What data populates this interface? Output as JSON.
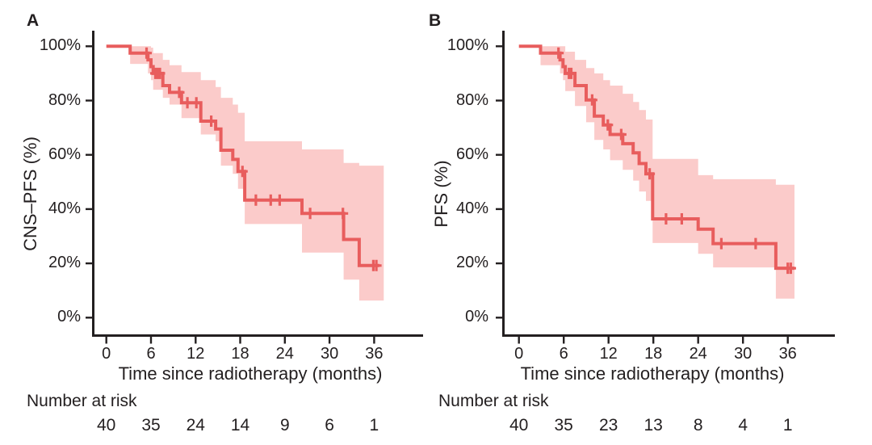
{
  "figure": {
    "panels": [
      {
        "label": "A",
        "y_axis_title": "CNS–PFS (%)",
        "x_axis_title": "Time since radiotherapy (months)",
        "risk_header": "Number at risk",
        "y_tick_labels": [
          "100%",
          "80%",
          "60%",
          "40%",
          "20%",
          "0%"
        ],
        "x_tick_labels": [
          "0",
          "6",
          "12",
          "18",
          "24",
          "30",
          "36"
        ],
        "number_at_risk": [
          "40",
          "35",
          "24",
          "14",
          "9",
          "6",
          "1"
        ]
      },
      {
        "label": "B",
        "y_axis_title": "PFS (%)",
        "x_axis_title": "Time since radiotherapy (months)",
        "risk_header": "Number at risk",
        "y_tick_labels": [
          "100%",
          "80%",
          "60%",
          "40%",
          "20%",
          "0%"
        ],
        "x_tick_labels": [
          "0",
          "6",
          "12",
          "18",
          "24",
          "30",
          "36"
        ],
        "number_at_risk": [
          "40",
          "35",
          "23",
          "13",
          "8",
          "4",
          "1"
        ]
      }
    ]
  },
  "chart_data": [
    {
      "type": "line",
      "subtype": "kaplan-meier-step-curve-with-ci-band",
      "title": "A",
      "xlabel": "Time since radiotherapy (months)",
      "ylabel": "CNS–PFS (%)",
      "xlim": [
        0,
        38.5
      ],
      "ylim": [
        0,
        100
      ],
      "x_ticks": [
        0,
        6,
        12,
        18,
        24,
        30,
        36
      ],
      "y_ticks_pct": [
        100,
        80,
        60,
        40,
        20,
        0
      ],
      "grid": false,
      "legend": "none",
      "curve_color": "#E85D5D",
      "band_color": "#FBCBCA",
      "steps": [
        [
          0,
          100
        ],
        [
          3.2,
          97.5
        ],
        [
          5.6,
          95
        ],
        [
          6.0,
          92.5
        ],
        [
          6.3,
          90
        ],
        [
          7.6,
          85.5
        ],
        [
          8.5,
          83
        ],
        [
          10.1,
          79.2
        ],
        [
          12.7,
          72.4
        ],
        [
          14.7,
          69.5
        ],
        [
          15.4,
          61.7
        ],
        [
          17.0,
          58.3
        ],
        [
          17.7,
          53.9
        ],
        [
          18.6,
          43.3
        ],
        [
          26.3,
          38.4
        ],
        [
          31.9,
          28.8
        ],
        [
          34.0,
          19.2
        ]
      ],
      "end_time": 36.7,
      "censor_marks": [
        [
          5.4,
          97.5
        ],
        [
          6.6,
          90
        ],
        [
          6.9,
          90
        ],
        [
          7.2,
          90
        ],
        [
          9.8,
          83
        ],
        [
          10.9,
          79.2
        ],
        [
          12.1,
          79.2
        ],
        [
          14.1,
          72.4
        ],
        [
          18.3,
          53.9
        ],
        [
          20.1,
          43.3
        ],
        [
          22.1,
          43.3
        ],
        [
          23.3,
          43.3
        ],
        [
          27.4,
          38.4
        ],
        [
          31.8,
          38.4
        ],
        [
          35.9,
          19.2
        ],
        [
          36.3,
          19.2
        ]
      ],
      "ci_band": [
        [
          3.2,
          93.5,
          100
        ],
        [
          5.6,
          90,
          100
        ],
        [
          6.0,
          87.5,
          99.5
        ],
        [
          6.3,
          84,
          97.5
        ],
        [
          7.6,
          81,
          95
        ],
        [
          8.5,
          78.5,
          93
        ],
        [
          10.1,
          73.5,
          90.5
        ],
        [
          12.7,
          67.5,
          87.5
        ],
        [
          14.7,
          65,
          85
        ],
        [
          15.4,
          56,
          81
        ],
        [
          17.0,
          53,
          78.5
        ],
        [
          17.7,
          47.5,
          75.5
        ],
        [
          18.6,
          34.5,
          65
        ],
        [
          26.3,
          24,
          62
        ],
        [
          31.9,
          14,
          57
        ],
        [
          34.0,
          6.3,
          56
        ]
      ],
      "ci_end_time": 37.3,
      "number_at_risk": {
        "times": [
          0,
          6,
          12,
          18,
          24,
          30,
          36
        ],
        "counts": [
          40,
          35,
          24,
          14,
          9,
          6,
          1
        ]
      }
    },
    {
      "type": "line",
      "subtype": "kaplan-meier-step-curve-with-ci-band",
      "title": "B",
      "xlabel": "Time since radiotherapy (months)",
      "ylabel": "PFS (%)",
      "xlim": [
        0,
        38.5
      ],
      "ylim": [
        0,
        100
      ],
      "x_ticks": [
        0,
        6,
        12,
        18,
        24,
        30,
        36
      ],
      "y_ticks_pct": [
        100,
        80,
        60,
        40,
        20,
        0
      ],
      "grid": false,
      "legend": "none",
      "curve_color": "#E85D5D",
      "band_color": "#FBCBCA",
      "steps": [
        [
          0,
          100
        ],
        [
          2.9,
          97.5
        ],
        [
          5.5,
          95
        ],
        [
          5.9,
          92.5
        ],
        [
          6.2,
          90
        ],
        [
          7.5,
          85.5
        ],
        [
          9.0,
          80.2
        ],
        [
          10.1,
          74.3
        ],
        [
          11.3,
          71
        ],
        [
          12.2,
          67.5
        ],
        [
          13.9,
          64.1
        ],
        [
          15.3,
          60.7
        ],
        [
          16.1,
          56.8
        ],
        [
          17.0,
          53
        ],
        [
          17.9,
          36.4
        ],
        [
          24.0,
          32.6
        ],
        [
          26.0,
          27.3
        ],
        [
          34.4,
          18.2
        ]
      ],
      "end_time": 36.9,
      "censor_marks": [
        [
          5.3,
          97.5
        ],
        [
          6.7,
          90
        ],
        [
          7.0,
          90
        ],
        [
          9.8,
          80.2
        ],
        [
          11.9,
          71
        ],
        [
          13.7,
          67.5
        ],
        [
          17.5,
          53
        ],
        [
          19.7,
          36.4
        ],
        [
          21.8,
          36.4
        ],
        [
          27.1,
          27.3
        ],
        [
          31.7,
          27.3
        ],
        [
          36.0,
          18.2
        ],
        [
          36.4,
          18.2
        ]
      ],
      "ci_band": [
        [
          2.9,
          93,
          100
        ],
        [
          5.5,
          90,
          100
        ],
        [
          5.9,
          87.5,
          100
        ],
        [
          6.2,
          83.5,
          98
        ],
        [
          7.5,
          78,
          95
        ],
        [
          9.0,
          72,
          92
        ],
        [
          10.1,
          65.5,
          90
        ],
        [
          11.3,
          62,
          87.5
        ],
        [
          12.2,
          58,
          85.5
        ],
        [
          13.9,
          54.5,
          82.5
        ],
        [
          15.3,
          50.5,
          79.5
        ],
        [
          16.1,
          46.5,
          76.5
        ],
        [
          17.0,
          43,
          73
        ],
        [
          17.9,
          27.5,
          58.5
        ],
        [
          24.0,
          23.5,
          52.5
        ],
        [
          26.0,
          18.5,
          51
        ],
        [
          34.4,
          7,
          49
        ]
      ],
      "ci_end_time": 36.9,
      "number_at_risk": {
        "times": [
          0,
          6,
          12,
          18,
          24,
          30,
          36
        ],
        "counts": [
          40,
          35,
          23,
          13,
          8,
          4,
          1
        ]
      }
    }
  ]
}
